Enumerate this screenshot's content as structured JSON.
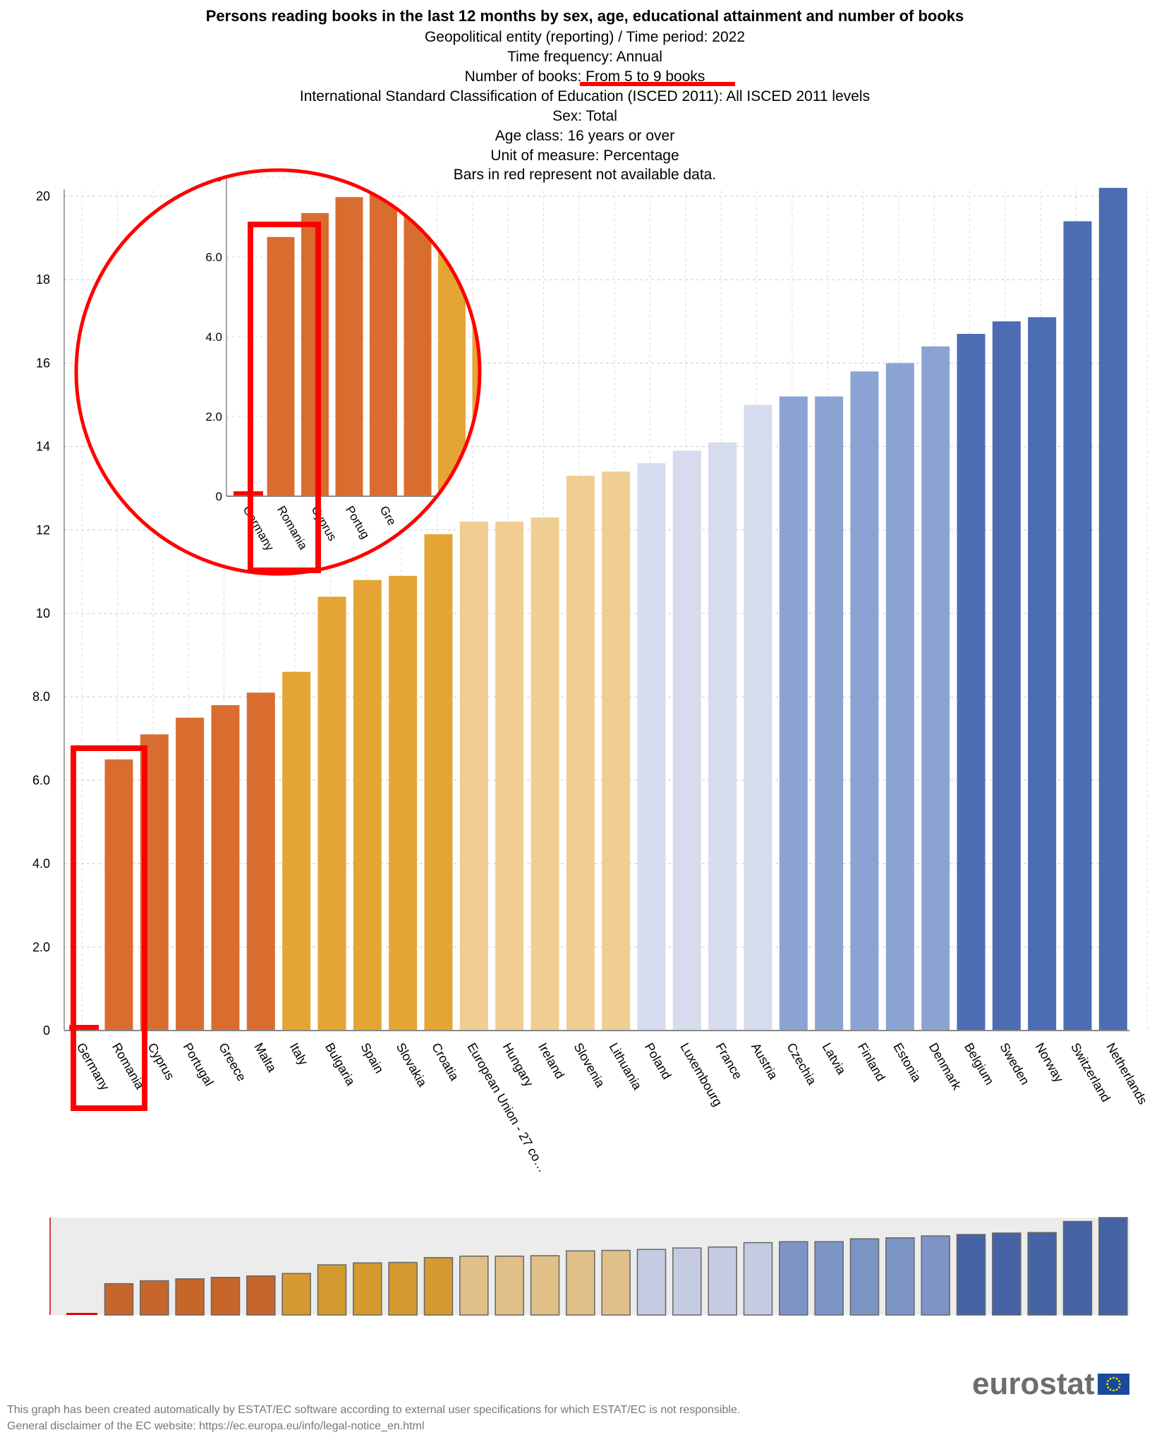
{
  "title_lines": {
    "title": "Persons reading books in the last 12 months by sex, age, educational attainment and number of books",
    "geo": "Geopolitical entity (reporting) / Time period: 2022",
    "freq": "Time frequency: Annual",
    "books": "Number of books: From 5 to 9 books",
    "isced": "International Standard Classification of Education (ISCED 2011): All ISCED 2011 levels",
    "sex": "Sex: Total",
    "age": "Age class: 16 years or over",
    "unit": "Unit of measure: Percentage",
    "note": "Bars in red represent not available data."
  },
  "chart_data": {
    "type": "bar",
    "title": "Persons reading books in the last 12 months by sex, age, educational attainment and number of books",
    "xlabel": "",
    "ylabel": "",
    "ylim": [
      0,
      20.2
    ],
    "yticks": [
      "0",
      "2.0",
      "4.0",
      "6.0",
      "8.0",
      "10",
      "12",
      "14",
      "16",
      "18",
      "20"
    ],
    "grid": true,
    "categories": [
      "Germany",
      "Romania",
      "Cyprus",
      "Portugal",
      "Greece",
      "Malta",
      "Italy",
      "Bulgaria",
      "Spain",
      "Slovakia",
      "Croatia",
      "European Union - 27 co…",
      "Hungary",
      "Ireland",
      "Slovenia",
      "Lithuania",
      "Poland",
      "Luxembourg",
      "France",
      "Austria",
      "Czechia",
      "Latvia",
      "Finland",
      "Estonia",
      "Denmark",
      "Belgium",
      "Sweden",
      "Norway",
      "Switzerland",
      "Netherlands"
    ],
    "values": [
      null,
      6.5,
      7.1,
      7.5,
      7.8,
      8.1,
      8.6,
      10.4,
      10.8,
      10.9,
      11.9,
      12.2,
      12.2,
      12.3,
      13.3,
      13.4,
      13.6,
      13.9,
      14.1,
      15.0,
      15.2,
      15.2,
      15.8,
      16.0,
      16.4,
      16.7,
      17.0,
      17.1,
      19.4,
      20.2
    ],
    "color_group": [
      0,
      0,
      0,
      0,
      0,
      0,
      1,
      1,
      1,
      1,
      1,
      2,
      2,
      2,
      2,
      2,
      3,
      3,
      3,
      3,
      4,
      4,
      4,
      4,
      4,
      5,
      5,
      5,
      5,
      5
    ],
    "colors": [
      "#d96d30",
      "#e5a535",
      "#f0ce92",
      "#d6dcee",
      "#8aa3d2",
      "#4c6cb3"
    ],
    "navigator_colors": [
      "#c6662a",
      "#d49a30",
      "#e0bf88",
      "#c5cbe0",
      "#7c95c5",
      "#4563a5"
    ],
    "na_color": "#ff0000",
    "inset": {
      "yticks": [
        "0",
        "2.0",
        "4.0",
        "6.0"
      ],
      "categories": [
        "Germany",
        "Romania",
        "Cyprus",
        "Portug",
        "Gre"
      ]
    }
  },
  "logo": "eurostat",
  "footer": {
    "line1": "This graph has been created automatically by ESTAT/EC software according to external user specifications for which ESTAT/EC is not responsible.",
    "line2": "General disclaimer of the EC website: https://ec.europa.eu/info/legal-notice_en.html"
  }
}
